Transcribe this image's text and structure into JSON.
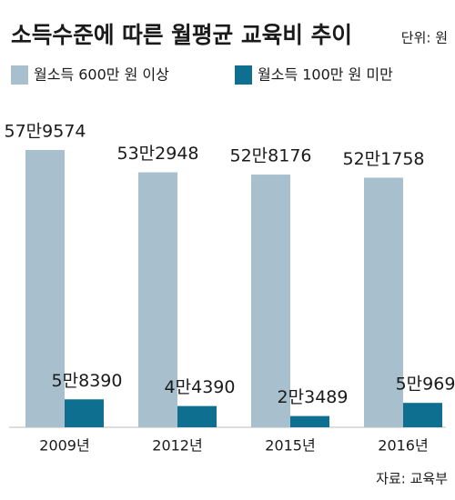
{
  "chart_data": {
    "type": "bar",
    "title": "소득수준에 따른 월평균 교육비 추이",
    "unit_label": "단위: 원",
    "source": "자료: 교육부",
    "categories": [
      "2009년",
      "2012년",
      "2015년",
      "2016년"
    ],
    "series": [
      {
        "name": "월소득 600만 원 이상",
        "color": "#a8c0cd",
        "values": [
          579574,
          532948,
          528176,
          521758
        ],
        "value_labels": [
          "57만9574",
          "53만2948",
          "52만8176",
          "52만1758"
        ]
      },
      {
        "name": "월소득 100만 원 미만",
        "color": "#0e6f90",
        "values": [
          58390,
          44390,
          23489,
          50969
        ],
        "value_labels": [
          "5만8390",
          "4만4390",
          "2만3489",
          "5만969"
        ]
      }
    ]
  }
}
